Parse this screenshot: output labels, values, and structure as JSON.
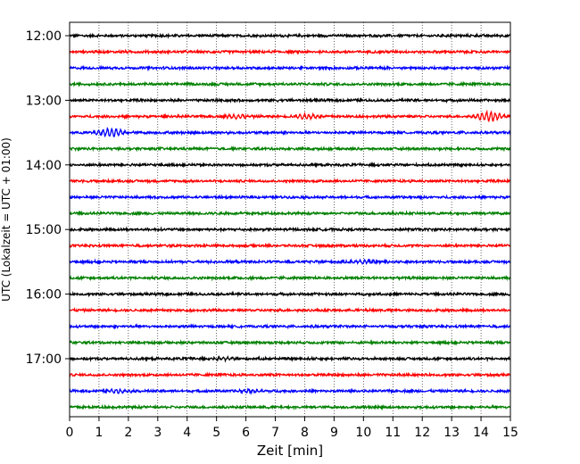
{
  "chart_data": {
    "type": "line",
    "subtype": "helicorder-seismogram",
    "title": "",
    "xlabel": "Zeit  [min]",
    "ylabel": "UTC (Lokalzeit = UTC + 01:00)",
    "xlim": [
      0,
      15
    ],
    "x_ticks": [
      0,
      1,
      2,
      3,
      4,
      5,
      6,
      7,
      8,
      9,
      10,
      11,
      12,
      13,
      14,
      15
    ],
    "x_grid": "vertical dotted at each minute",
    "y_ticks": [
      "12:00",
      "13:00",
      "14:00",
      "15:00",
      "16:00",
      "17:00"
    ],
    "trace_interval_min": 15,
    "traces_per_hour": 4,
    "trace_color_cycle": [
      "#000000",
      "#ff0000",
      "#0000ff",
      "#008000"
    ],
    "traces": [
      {
        "start": "12:00",
        "color": "#000000",
        "events": []
      },
      {
        "start": "12:15",
        "color": "#ff0000",
        "events": []
      },
      {
        "start": "12:30",
        "color": "#0000ff",
        "events": []
      },
      {
        "start": "12:45",
        "color": "#008000",
        "events": []
      },
      {
        "start": "13:00",
        "color": "#000000",
        "events": []
      },
      {
        "start": "13:15",
        "color": "#ff0000",
        "events": [
          {
            "t": 5.7,
            "amp": 2.0
          },
          {
            "t": 8.1,
            "amp": 2.5
          },
          {
            "t": 14.3,
            "amp": 5.0
          }
        ]
      },
      {
        "start": "13:30",
        "color": "#0000ff",
        "events": [
          {
            "t": 1.4,
            "amp": 4.5
          }
        ]
      },
      {
        "start": "13:45",
        "color": "#008000",
        "events": []
      },
      {
        "start": "14:00",
        "color": "#000000",
        "events": []
      },
      {
        "start": "14:15",
        "color": "#ff0000",
        "events": []
      },
      {
        "start": "14:30",
        "color": "#0000ff",
        "events": []
      },
      {
        "start": "14:45",
        "color": "#008000",
        "events": []
      },
      {
        "start": "15:00",
        "color": "#000000",
        "events": []
      },
      {
        "start": "15:15",
        "color": "#ff0000",
        "events": []
      },
      {
        "start": "15:30",
        "color": "#0000ff",
        "events": [
          {
            "t": 10.0,
            "amp": 1.8
          }
        ]
      },
      {
        "start": "15:45",
        "color": "#008000",
        "events": []
      },
      {
        "start": "16:00",
        "color": "#000000",
        "events": []
      },
      {
        "start": "16:15",
        "color": "#ff0000",
        "events": []
      },
      {
        "start": "16:30",
        "color": "#0000ff",
        "events": []
      },
      {
        "start": "16:45",
        "color": "#008000",
        "events": []
      },
      {
        "start": "17:00",
        "color": "#000000",
        "events": [
          {
            "t": 5.2,
            "amp": 1.6
          }
        ]
      },
      {
        "start": "17:15",
        "color": "#ff0000",
        "events": []
      },
      {
        "start": "17:30",
        "color": "#0000ff",
        "events": [
          {
            "t": 1.7,
            "amp": 1.8
          },
          {
            "t": 6.2,
            "amp": 1.6
          }
        ]
      },
      {
        "start": "17:45",
        "color": "#008000",
        "events": []
      }
    ]
  }
}
